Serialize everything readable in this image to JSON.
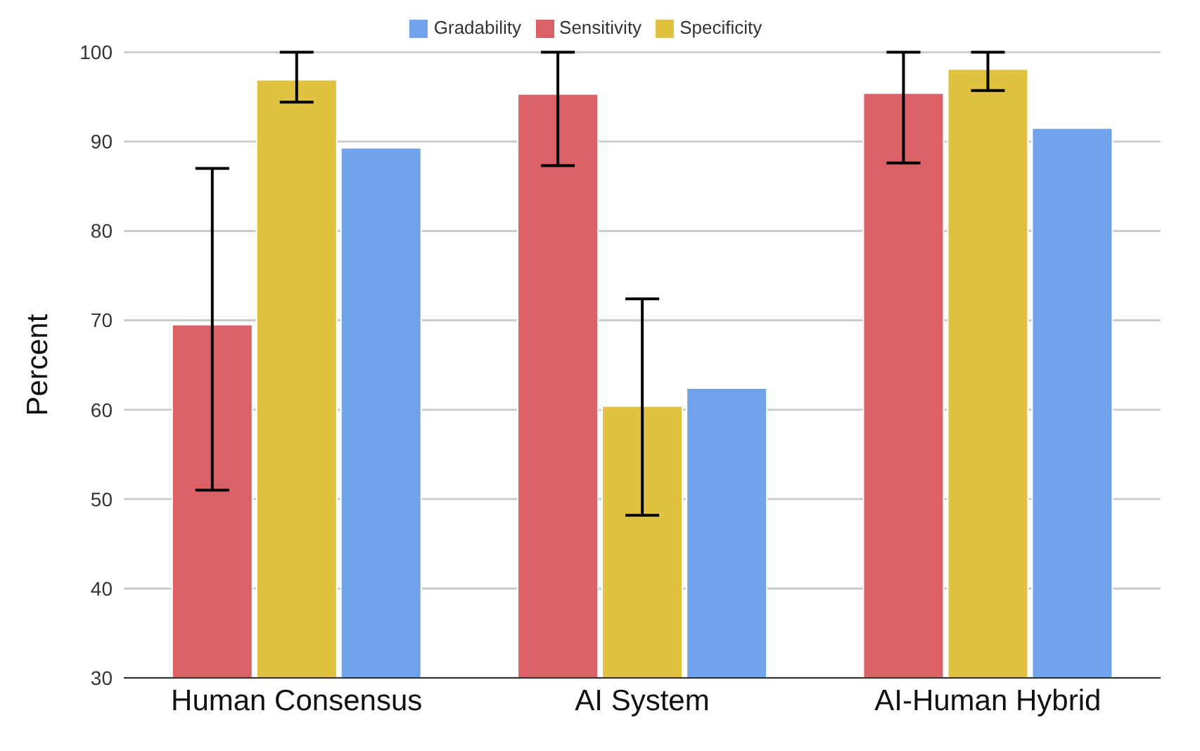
{
  "chart_data": {
    "type": "bar",
    "ylabel": "Percent",
    "categories": [
      "Human Consensus",
      "AI System",
      "AI-Human Hybrid"
    ],
    "series": [
      {
        "name": "Sensitivity",
        "color": "#dc6166",
        "values": [
          69.5,
          95.3,
          95.4
        ],
        "errors": [
          [
            51,
            87
          ],
          [
            87.3,
            100
          ],
          [
            87.6,
            100
          ]
        ]
      },
      {
        "name": "Specificity",
        "color": "#e0c140",
        "values": [
          96.9,
          60.4,
          98.1
        ],
        "errors": [
          [
            94.4,
            100
          ],
          [
            48.2,
            72.4
          ],
          [
            95.7,
            100
          ]
        ]
      },
      {
        "name": "Gradability",
        "color": "#73a2ec",
        "values": [
          89.3,
          62.4,
          91.5
        ]
      }
    ],
    "ylim": [
      30,
      100
    ],
    "yticks": [
      30,
      40,
      50,
      60,
      70,
      80,
      90,
      100
    ],
    "grid": "y",
    "legend": "top"
  }
}
